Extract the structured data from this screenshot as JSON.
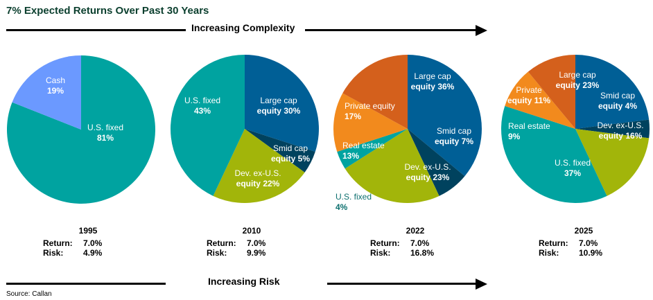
{
  "title": "7% Expected Returns Over Past 30 Years",
  "top_band": {
    "label": "Increasing Complexity"
  },
  "bottom_band": {
    "label": "Increasing Risk"
  },
  "source": "Source: Callan",
  "colors": {
    "us_fixed": "#00a3a0",
    "cash": "#6b99ff",
    "large_cap": "#005f96",
    "smid_cap": "#00425e",
    "dev_ex_us": "#a2b50a",
    "private_equity": "#d4601c",
    "real_estate": "#f28a1d"
  },
  "chart_data": [
    {
      "type": "pie",
      "year": "1995",
      "return_label": "Return:",
      "return_value": "7.0%",
      "risk_label": "Risk:",
      "risk_value": "4.9%",
      "slices": [
        {
          "name": "U.S. fixed",
          "label_line1": "U.S. fixed",
          "label_line2": "81%",
          "value": 81,
          "color": "#00a3a0"
        },
        {
          "name": "Cash",
          "label_line1": "Cash",
          "label_line2": "19%",
          "value": 19,
          "color": "#6b99ff"
        }
      ]
    },
    {
      "type": "pie",
      "year": "2010",
      "return_label": "Return:",
      "return_value": "7.0%",
      "risk_label": "Risk:",
      "risk_value": "9.9%",
      "slices": [
        {
          "name": "Large cap equity",
          "label_line1": "Large cap",
          "label_line2": "equity 30%",
          "value": 30,
          "color": "#005f96"
        },
        {
          "name": "Smid cap equity",
          "label_line1": "Smid cap",
          "label_line2": "equity 5%",
          "value": 5,
          "color": "#00425e"
        },
        {
          "name": "Dev. ex-U.S. equity",
          "label_line1": "Dev. ex-U.S.",
          "label_line2": "equity 22%",
          "value": 22,
          "color": "#a2b50a"
        },
        {
          "name": "U.S. fixed",
          "label_line1": "U.S. fixed",
          "label_line2": "43%",
          "value": 43,
          "color": "#00a3a0"
        }
      ]
    },
    {
      "type": "pie",
      "year": "2022",
      "return_label": "Return:",
      "return_value": "7.0%",
      "risk_label": "Risk:",
      "risk_value": "16.8%",
      "slices": [
        {
          "name": "Large cap equity",
          "label_line1": "Large cap",
          "label_line2": "equity 36%",
          "value": 36,
          "color": "#005f96"
        },
        {
          "name": "Smid cap equity",
          "label_line1": "Smid cap",
          "label_line2": "equity 7%",
          "value": 7,
          "color": "#00425e"
        },
        {
          "name": "Dev. ex-U.S. equity",
          "label_line1": "Dev. ex-U.S.",
          "label_line2": "equity 23%",
          "value": 23,
          "color": "#a2b50a"
        },
        {
          "name": "U.S. fixed",
          "label_line1": "U.S. fixed",
          "label_line2": "4%",
          "value": 4,
          "color": "#00a3a0"
        },
        {
          "name": "Real estate",
          "label_line1": "Real estate",
          "label_line2": "13%",
          "value": 13,
          "color": "#f28a1d"
        },
        {
          "name": "Private equity",
          "label_line1": "Private equity",
          "label_line2": "17%",
          "value": 17,
          "color": "#d4601c"
        }
      ]
    },
    {
      "type": "pie",
      "year": "2025",
      "return_label": "Return:",
      "return_value": "7.0%",
      "risk_label": "Risk:",
      "risk_value": "10.9%",
      "slices": [
        {
          "name": "Large cap equity",
          "label_line1": "Large cap",
          "label_line2": "equity 23%",
          "value": 23,
          "color": "#005f96"
        },
        {
          "name": "Smid cap equity",
          "label_line1": "Smid cap",
          "label_line2": "equity 4%",
          "value": 4,
          "color": "#00425e"
        },
        {
          "name": "Dev. ex-U.S. equity",
          "label_line1": "Dev. ex-U.S.",
          "label_line2": "equity 16%",
          "value": 16,
          "color": "#a2b50a"
        },
        {
          "name": "U.S. fixed",
          "label_line1": "U.S. fixed",
          "label_line2": "37%",
          "value": 37,
          "color": "#00a3a0"
        },
        {
          "name": "Real estate",
          "label_line1": "Real estate",
          "label_line2": "9%",
          "value": 9,
          "color": "#f28a1d"
        },
        {
          "name": "Private equity",
          "label_line1": "Private",
          "label_line2": "equity 11%",
          "value": 11,
          "color": "#d4601c"
        }
      ]
    }
  ]
}
